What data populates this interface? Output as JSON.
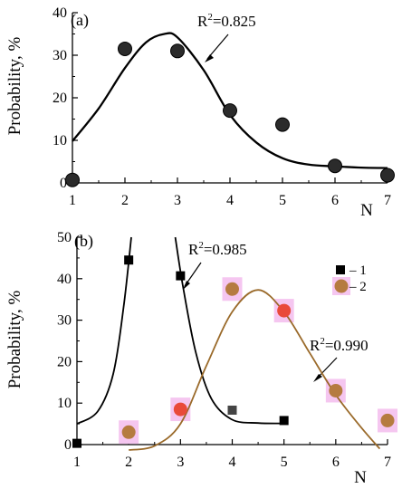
{
  "colors": {
    "axis": "#000000",
    "curve_dark": "#000000",
    "curve_brown": "#9a6a2a",
    "dot_dark": "#2b2b2b",
    "dot_brown": "#b57b40",
    "dot_red": "#e94a3a",
    "square": "#000000",
    "square_grey": "#444444",
    "halo": "#f5c6f0"
  },
  "chart_data": [
    {
      "type": "scatter",
      "panel": "(a)",
      "xlabel": "N",
      "ylabel": "Probability, %",
      "xlim": [
        1,
        7
      ],
      "ylim": [
        0,
        40
      ],
      "x_ticks": [
        1,
        2,
        3,
        4,
        5,
        6,
        7
      ],
      "y_ticks": [
        0,
        10,
        20,
        30,
        40
      ],
      "series": [
        {
          "points": [
            [
              1,
              0.7
            ],
            [
              2,
              31.5
            ],
            [
              3,
              31
            ],
            [
              4,
              17
            ],
            [
              5,
              13.7
            ],
            [
              6,
              4
            ],
            [
              7,
              1.8
            ]
          ],
          "fit": [
            [
              1,
              9.8
            ],
            [
              1.5,
              17.5
            ],
            [
              2,
              27
            ],
            [
              2.4,
              33
            ],
            [
              2.75,
              35
            ],
            [
              3,
              34.2
            ],
            [
              3.5,
              26.5
            ],
            [
              4,
              16
            ],
            [
              4.5,
              9.5
            ],
            [
              5,
              5.8
            ],
            [
              5.5,
              4.3
            ],
            [
              6,
              3.9
            ],
            [
              6.5,
              3.6
            ],
            [
              7,
              3.5
            ]
          ],
          "annotation": "R2=0.825"
        }
      ],
      "annotation_parts": {
        "prefix": "R",
        "sup": "2",
        "suffix": "=0.825"
      }
    },
    {
      "type": "scatter",
      "panel": "(b)",
      "xlabel": "N",
      "ylabel": "Probability, %",
      "xlim": [
        1,
        7
      ],
      "ylim": [
        0,
        50
      ],
      "x_ticks": [
        1,
        2,
        3,
        4,
        5,
        6,
        7
      ],
      "y_ticks": [
        0,
        10,
        20,
        30,
        40,
        50
      ],
      "legend": [
        {
          "marker": "square",
          "label": "1"
        },
        {
          "marker": "circle",
          "label": "2"
        }
      ],
      "series": [
        {
          "name": "1",
          "marker": "square",
          "points": [
            [
              1,
              0.3
            ],
            [
              2,
              44.5
            ],
            [
              3,
              40.7
            ],
            [
              4,
              8.3
            ],
            [
              5,
              5.8
            ]
          ],
          "fit": [
            [
              1,
              5
            ],
            [
              1.4,
              8
            ],
            [
              1.7,
              17
            ],
            [
              1.9,
              33
            ],
            [
              2.05,
              50
            ]
          ],
          "fit_right": [
            [
              2.9,
              50
            ],
            [
              3.05,
              38
            ],
            [
              3.3,
              22
            ],
            [
              3.6,
              11
            ],
            [
              4,
              6
            ],
            [
              4.5,
              5.2
            ],
            [
              5,
              5.1
            ]
          ],
          "annotation_parts": {
            "prefix": "R",
            "sup": "2",
            "suffix": "=0.985"
          }
        },
        {
          "name": "2",
          "marker": "circle",
          "points": [
            [
              2,
              3
            ],
            [
              3,
              8.5
            ],
            [
              4,
              37.5
            ],
            [
              5,
              32.3
            ],
            [
              6,
              13
            ],
            [
              7,
              5.8
            ]
          ],
          "fit": [
            [
              2,
              -1.3
            ],
            [
              2.5,
              -0.3
            ],
            [
              3,
              5
            ],
            [
              3.5,
              19
            ],
            [
              4,
              32
            ],
            [
              4.5,
              37.3
            ],
            [
              5,
              32
            ],
            [
              5.5,
              22
            ],
            [
              6,
              12
            ],
            [
              6.5,
              4
            ],
            [
              6.85,
              -1
            ]
          ],
          "annotation_parts": {
            "prefix": "R",
            "sup": "2",
            "suffix": "=0.990"
          }
        }
      ]
    }
  ]
}
